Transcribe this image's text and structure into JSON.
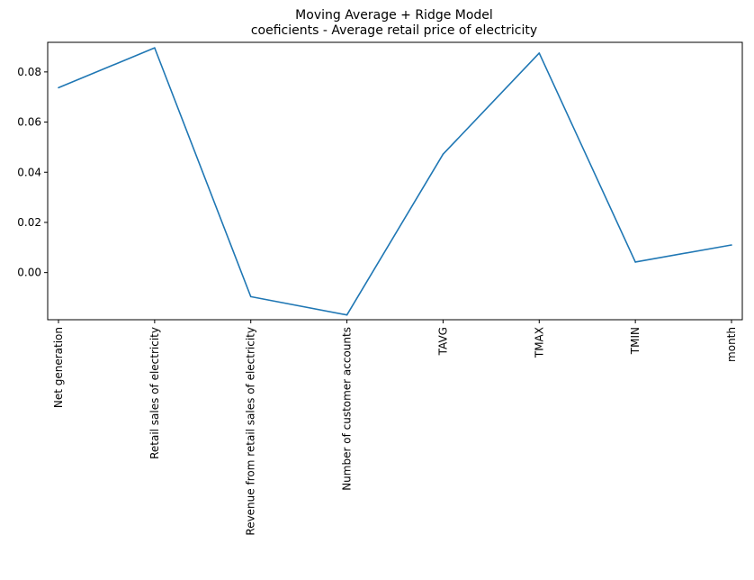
{
  "chart_data": {
    "type": "line",
    "title": "Moving Average + Ridge Model",
    "subtitle": "coeficients - Average retail price of electricity",
    "xlabel": "",
    "ylabel": "",
    "categories": [
      "Net generation",
      "Retail sales of electricity",
      "Revenue from retail sales of electricity",
      "Number of customer accounts",
      "TAVG",
      "TMAX",
      "TMIN",
      "month"
    ],
    "values": [
      0.0737,
      0.0896,
      -0.0096,
      -0.0169,
      0.0472,
      0.0875,
      0.0042,
      0.011
    ],
    "ylim": [
      -0.0188,
      0.0918
    ],
    "yticks": [
      0.0,
      0.02,
      0.04,
      0.06,
      0.08
    ],
    "ytick_labels": [
      "0.00",
      "0.02",
      "0.04",
      "0.06",
      "0.08"
    ],
    "grid": false,
    "line_color": "#1f77b4"
  }
}
